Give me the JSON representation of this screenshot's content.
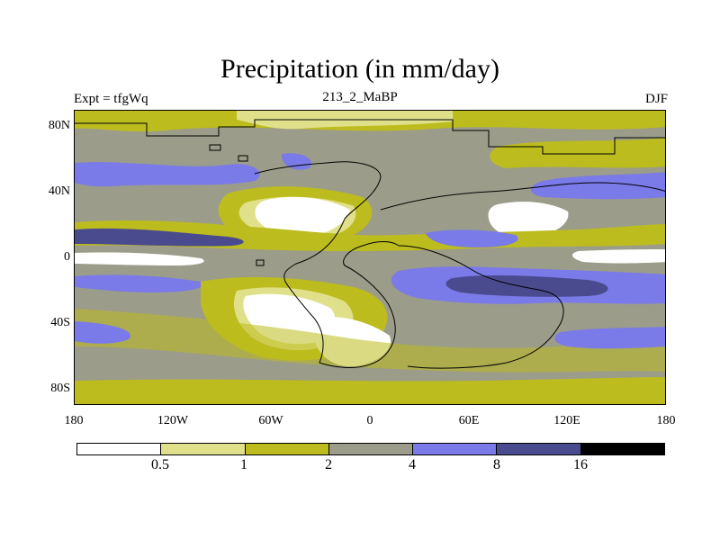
{
  "title": "Precipitation (in mm/day)",
  "subtitle_left": "Expt = tfgWq",
  "subtitle_center": "213_2_MaBP",
  "subtitle_right": "DJF",
  "lat_labels": [
    "80N",
    "40N",
    "0",
    "40S",
    "80S"
  ],
  "lon_labels": [
    "180",
    "120W",
    "60W",
    "0",
    "60E",
    "120E",
    "180"
  ],
  "colorbar": {
    "labels": [
      "0.5",
      "1",
      "2",
      "4",
      "8",
      "16"
    ],
    "colors": [
      "#ffffff",
      "#e0e08a",
      "#bcbc1e",
      "#9c9c8a",
      "#7a7ae8",
      "#4a4a8e",
      "#000000"
    ]
  }
}
